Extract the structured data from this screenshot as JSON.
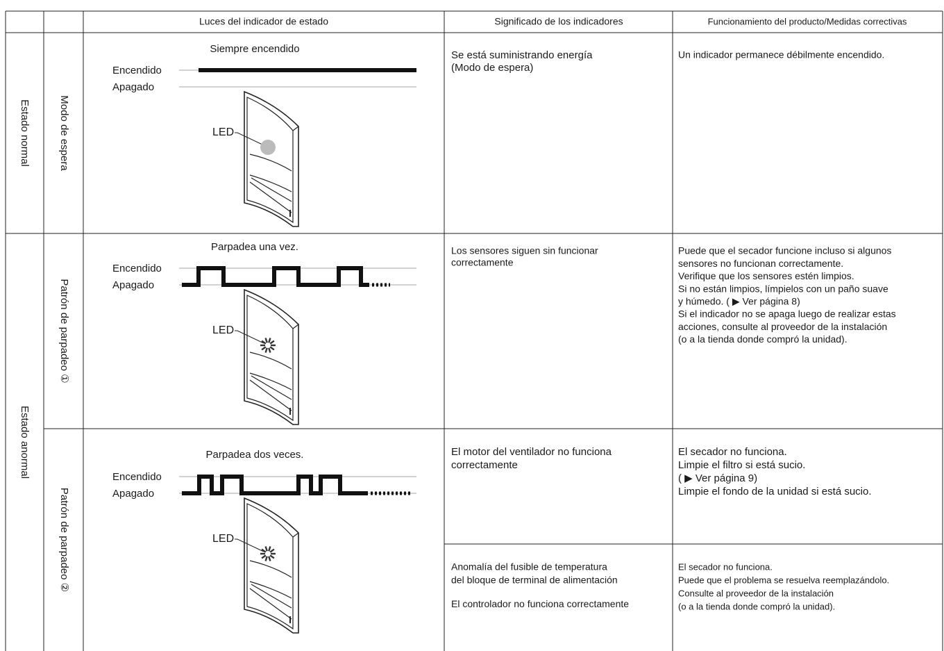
{
  "table": {
    "header": [
      "Luces del indicador de estado",
      "Significado de los indicadores",
      "Funcionamiento del producto/Medidas correctivas"
    ],
    "groups": [
      {
        "label": "Estado normal",
        "rows": [
          {
            "pattern": "Modo de espera",
            "diagram": {
              "caption": "Siempre encendido",
              "on": "Encendido",
              "off": "Apagado",
              "led": "LED"
            },
            "entries": [
              {
                "meaning": [
                  [
                    "Se está suministrando energía",
                    "(Modo de espera)"
                  ]
                ],
                "action": [
                  [
                    "Un indicador permanece débilmente encendido."
                  ]
                ]
              }
            ]
          }
        ]
      },
      {
        "label": "Estado anormal",
        "rows": [
          {
            "pattern": "Patrón de parpadeo ①",
            "diagram": {
              "caption": "Parpadea una vez.",
              "on": "Encendido",
              "off": "Apagado",
              "led": "LED"
            },
            "entries": [
              {
                "meaning": [
                  [
                    "Los sensores siguen sin funcionar",
                    "correctamente"
                  ]
                ],
                "action": [
                  [
                    "Puede que el secador funcione incluso si algunos",
                    "sensores no funcionan correctamente.",
                    "Verifique que los sensores estén limpios.",
                    "Si no están limpios, límpielos con un paño suave",
                    "y húmedo. (  ▶ Ver página 8)",
                    "Si el indicador no se apaga luego de realizar estas",
                    "acciones, consulte al proveedor de la instalación",
                    "(o a la tienda donde compró la unidad)."
                  ]
                ]
              }
            ]
          },
          {
            "pattern": "Patrón de parpadeo ②",
            "diagram": {
              "caption": "Parpadea dos veces.",
              "on": "Encendido",
              "off": "Apagado",
              "led": "LED"
            },
            "entries": [
              {
                "meaning": [
                  [
                    "El motor del ventilador no funciona",
                    "correctamente"
                  ]
                ],
                "action": [
                  [
                    "El secador no funciona.",
                    "Limpie el filtro si está sucio.",
                    "(  ▶ Ver página 9)",
                    "Limpie el fondo de la unidad si está sucio."
                  ]
                ]
              },
              {
                "meaning": [
                  [
                    "Anomalía del fusible de temperatura",
                    "del bloque de terminal de alimentación"
                  ],
                  [
                    "El controlador no funciona correctamente"
                  ]
                ],
                "action": [
                  [
                    "El secador no funciona.",
                    "Puede que el problema se resuelva reemplazándolo.",
                    "Consulte al proveedor de la instalación",
                    "(o a la tienda donde compró la unidad)."
                  ]
                ]
              }
            ]
          }
        ]
      }
    ]
  }
}
